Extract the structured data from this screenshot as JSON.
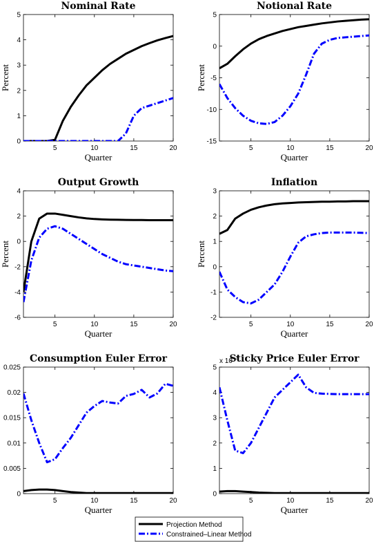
{
  "legend": {
    "entries": [
      "Projection Method",
      "Constrained–Linear Method"
    ]
  },
  "series_styles": [
    {
      "color": "#000000",
      "dash": "solid"
    },
    {
      "color": "#0000ff",
      "dash": "dashdot"
    }
  ],
  "chart_data": [
    {
      "type": "line",
      "title": "Nominal Rate",
      "xlabel": "Quarter",
      "ylabel": "Percent",
      "xlim": [
        1,
        20
      ],
      "ylim": [
        0,
        5
      ],
      "xticks": [
        5,
        10,
        15,
        20
      ],
      "yticks": [
        0,
        1,
        2,
        3,
        4,
        5
      ],
      "x": [
        1,
        2,
        3,
        4,
        5,
        6,
        7,
        8,
        9,
        10,
        11,
        12,
        13,
        14,
        15,
        16,
        17,
        18,
        19,
        20
      ],
      "series": [
        {
          "name": "Projection Method",
          "values": [
            0,
            0,
            0,
            0,
            0.05,
            0.8,
            1.35,
            1.8,
            2.2,
            2.5,
            2.8,
            3.05,
            3.25,
            3.45,
            3.6,
            3.75,
            3.87,
            3.98,
            4.07,
            4.15
          ]
        },
        {
          "name": "Constrained–Linear Method",
          "values": [
            0,
            0,
            0,
            0,
            0,
            0,
            0,
            0,
            0,
            0,
            0,
            0,
            0,
            0.3,
            1.0,
            1.3,
            1.4,
            1.5,
            1.6,
            1.7
          ]
        }
      ]
    },
    {
      "type": "line",
      "title": "Notional Rate",
      "xlabel": "Quarter",
      "ylabel": "Percent",
      "xlim": [
        1,
        20
      ],
      "ylim": [
        -15,
        5
      ],
      "xticks": [
        5,
        10,
        15,
        20
      ],
      "yticks": [
        -15,
        -10,
        -5,
        0,
        5
      ],
      "x": [
        1,
        2,
        3,
        4,
        5,
        6,
        7,
        8,
        9,
        10,
        11,
        12,
        13,
        14,
        15,
        16,
        17,
        18,
        19,
        20
      ],
      "series": [
        {
          "name": "Projection Method",
          "values": [
            -3.5,
            -2.8,
            -1.6,
            -0.5,
            0.4,
            1.1,
            1.6,
            2.0,
            2.4,
            2.7,
            3.0,
            3.2,
            3.4,
            3.6,
            3.75,
            3.9,
            4.0,
            4.1,
            4.2,
            4.25
          ]
        },
        {
          "name": "Constrained–Linear Method",
          "values": [
            -6.0,
            -8.2,
            -9.8,
            -11.0,
            -11.8,
            -12.2,
            -12.3,
            -12.0,
            -11.0,
            -9.5,
            -7.5,
            -4.5,
            -1.2,
            0.4,
            1.0,
            1.3,
            1.4,
            1.5,
            1.6,
            1.7
          ]
        }
      ]
    },
    {
      "type": "line",
      "title": "Output Growth",
      "xlabel": "Quarter",
      "ylabel": "Percent",
      "xlim": [
        1,
        20
      ],
      "ylim": [
        -6,
        4
      ],
      "xticks": [
        5,
        10,
        15,
        20
      ],
      "yticks": [
        -6,
        -4,
        -2,
        0,
        2,
        4
      ],
      "x": [
        1,
        2,
        3,
        4,
        5,
        6,
        7,
        8,
        9,
        10,
        11,
        12,
        13,
        14,
        15,
        16,
        17,
        18,
        19,
        20
      ],
      "series": [
        {
          "name": "Projection Method",
          "values": [
            -4.0,
            0,
            1.8,
            2.2,
            2.2,
            2.1,
            2.0,
            1.9,
            1.82,
            1.77,
            1.74,
            1.72,
            1.71,
            1.7,
            1.69,
            1.69,
            1.68,
            1.68,
            1.68,
            1.68
          ]
        },
        {
          "name": "Constrained–Linear Method",
          "values": [
            -4.8,
            -1.5,
            0.3,
            1.0,
            1.2,
            1.0,
            0.6,
            0.2,
            -0.2,
            -0.6,
            -1.0,
            -1.3,
            -1.6,
            -1.8,
            -1.9,
            -2.0,
            -2.1,
            -2.2,
            -2.3,
            -2.35
          ]
        }
      ]
    },
    {
      "type": "line",
      "title": "Inflation",
      "xlabel": "Quarter",
      "ylabel": "Percent",
      "xlim": [
        1,
        20
      ],
      "ylim": [
        -2,
        3
      ],
      "xticks": [
        5,
        10,
        15,
        20
      ],
      "yticks": [
        -2,
        -1,
        0,
        1,
        2,
        3
      ],
      "x": [
        1,
        2,
        3,
        4,
        5,
        6,
        7,
        8,
        9,
        10,
        11,
        12,
        13,
        14,
        15,
        16,
        17,
        18,
        19,
        20
      ],
      "series": [
        {
          "name": "Projection Method",
          "values": [
            1.3,
            1.45,
            1.9,
            2.1,
            2.25,
            2.35,
            2.42,
            2.47,
            2.5,
            2.52,
            2.54,
            2.55,
            2.56,
            2.57,
            2.57,
            2.58,
            2.58,
            2.59,
            2.59,
            2.59
          ]
        },
        {
          "name": "Constrained–Linear Method",
          "values": [
            -0.2,
            -0.9,
            -1.2,
            -1.4,
            -1.45,
            -1.3,
            -1.0,
            -0.7,
            -0.2,
            0.4,
            0.95,
            1.2,
            1.28,
            1.33,
            1.35,
            1.35,
            1.35,
            1.35,
            1.34,
            1.33
          ]
        }
      ]
    },
    {
      "type": "line",
      "title": "Consumption Euler Error",
      "xlabel": "Quarter",
      "ylabel": "",
      "xlim": [
        1,
        20
      ],
      "ylim": [
        0,
        0.025
      ],
      "xticks": [
        5,
        10,
        15,
        20
      ],
      "yticks": [
        0,
        0.005,
        0.01,
        0.015,
        0.02,
        0.025
      ],
      "ytick_labels": [
        "0",
        "0.005",
        "0.01",
        "0.015",
        "0.02",
        "0.025"
      ],
      "x": [
        1,
        2,
        3,
        4,
        5,
        6,
        7,
        8,
        9,
        10,
        11,
        12,
        13,
        14,
        15,
        16,
        17,
        18,
        19,
        20
      ],
      "series": [
        {
          "name": "Projection Method",
          "values": [
            0.0005,
            0.0007,
            0.0008,
            0.0008,
            0.0007,
            0.0005,
            0.0003,
            0.0002,
            0.0001,
            0.0001,
            0.0001,
            0.0001,
            0.0001,
            0.0001,
            0.0001,
            0.0001,
            0.0001,
            0.0001,
            0.0001,
            0.0001
          ]
        },
        {
          "name": "Constrained–Linear Method",
          "values": [
            0.0198,
            0.0145,
            0.01,
            0.0062,
            0.0068,
            0.009,
            0.011,
            0.0135,
            0.016,
            0.0173,
            0.0183,
            0.018,
            0.0178,
            0.0193,
            0.0197,
            0.0205,
            0.019,
            0.0198,
            0.0217,
            0.0213
          ]
        }
      ]
    },
    {
      "type": "line",
      "title": "Sticky Price Euler Error",
      "xlabel": "Quarter",
      "ylabel": "",
      "xlim": [
        1,
        20
      ],
      "ylim": [
        0,
        5
      ],
      "xticks": [
        5,
        10,
        15,
        20
      ],
      "yticks": [
        0,
        1,
        2,
        3,
        4,
        5
      ],
      "scale_label": {
        "base": "x 10",
        "exponent": "-3"
      },
      "x": [
        1,
        2,
        3,
        4,
        5,
        6,
        7,
        8,
        9,
        10,
        11,
        12,
        13,
        14,
        15,
        16,
        17,
        18,
        19,
        20
      ],
      "series": [
        {
          "name": "Projection Method",
          "values": [
            0.08,
            0.1,
            0.1,
            0.08,
            0.06,
            0.04,
            0.03,
            0.02,
            0.02,
            0.02,
            0.02,
            0.02,
            0.02,
            0.02,
            0.02,
            0.02,
            0.02,
            0.02,
            0.02,
            0.02
          ]
        },
        {
          "name": "Constrained–Linear Method",
          "values": [
            4.2,
            2.9,
            1.7,
            1.6,
            2.0,
            2.6,
            3.2,
            3.8,
            4.1,
            4.4,
            4.7,
            4.2,
            3.98,
            3.95,
            3.94,
            3.93,
            3.93,
            3.93,
            3.93,
            3.93
          ]
        }
      ]
    }
  ]
}
